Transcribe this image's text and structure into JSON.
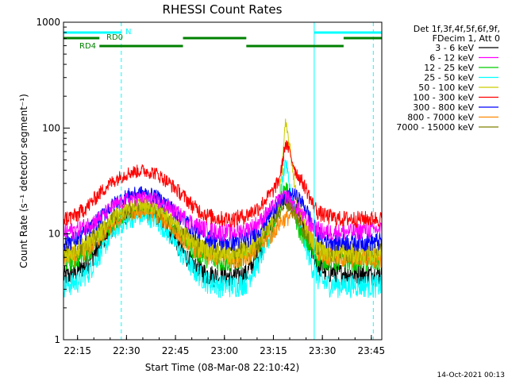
{
  "chart_data": {
    "type": "line",
    "title": "RHESSI Count Rates",
    "xlabel": "Start Time (08-Mar-08 22:10:42)",
    "ylabel": "Count Rate (s⁻¹ detector segment⁻¹)",
    "x_unit": "minutes from 22:10:42",
    "xlim": [
      0,
      97.5
    ],
    "ylim": [
      1,
      1000
    ],
    "yscale": "log",
    "x_ticks": [
      {
        "label": "22:15",
        "value": 4.3
      },
      {
        "label": "22:30",
        "value": 19.3
      },
      {
        "label": "22:45",
        "value": 34.3
      },
      {
        "label": "23:00",
        "value": 49.3
      },
      {
        "label": "23:15",
        "value": 64.3
      },
      {
        "label": "23:30",
        "value": 79.3
      },
      {
        "label": "23:45",
        "value": 94.3
      }
    ],
    "y_ticks": [
      {
        "label": "1",
        "value": 1
      },
      {
        "label": "10",
        "value": 10
      },
      {
        "label": "100",
        "value": 100
      },
      {
        "label": "1000",
        "value": 1000
      }
    ],
    "legend_header": [
      "Det 1f,3f,4f,5f,6f,9f,",
      "FDecim 1, Att 0"
    ],
    "legend_position": "right",
    "footer": "14-Oct-2021 00:13",
    "x": [
      0,
      4,
      8,
      12,
      16,
      20,
      24,
      28,
      32,
      36,
      40,
      44,
      48,
      52,
      56,
      60,
      64,
      66,
      67,
      68,
      69,
      70,
      71,
      72,
      74,
      76,
      78,
      80,
      84,
      88,
      92,
      95
    ],
    "series": [
      {
        "name": "3 - 6 keV",
        "color": "#000000",
        "values": [
          4.0,
          4.3,
          5.5,
          8.5,
          12.5,
          15.5,
          16.5,
          15,
          11,
          7,
          5,
          4.2,
          4.0,
          4.0,
          4.2,
          6.5,
          13,
          19,
          20,
          21,
          20,
          19,
          17,
          15,
          11,
          7,
          5,
          4.5,
          4.3,
          4.2,
          4.2,
          4.2
        ]
      },
      {
        "name": "6 - 12 keV",
        "color": "#ff00ff",
        "values": [
          10.5,
          11,
          12.5,
          15,
          19,
          21.5,
          22,
          21,
          18,
          15,
          12.5,
          11,
          10.5,
          10.5,
          11,
          13,
          18,
          21,
          22,
          23,
          22,
          20,
          18.5,
          17,
          14,
          12,
          11,
          10.5,
          10.5,
          10.5,
          11,
          11
        ]
      },
      {
        "name": "12 - 25 keV",
        "color": "#00cc00",
        "values": [
          5.5,
          5.8,
          7,
          10,
          13.5,
          16.5,
          17.5,
          16.5,
          13,
          9.5,
          7,
          6,
          5.5,
          5.5,
          6,
          8,
          12,
          17,
          22,
          29,
          24,
          18,
          14,
          11,
          9,
          7,
          6,
          5.7,
          5.5,
          5.5,
          5.5,
          5.5
        ]
      },
      {
        "name": "25 - 50 keV",
        "color": "#00ffff",
        "values": [
          3.3,
          3.5,
          4.5,
          7,
          11,
          13.5,
          14.5,
          13.5,
          10,
          6.5,
          4.5,
          3.6,
          3.3,
          3.3,
          3.5,
          5.5,
          10,
          18,
          30,
          50,
          32,
          20,
          15,
          12,
          8,
          5,
          3.8,
          3.4,
          3.3,
          3.3,
          3.3,
          3.3
        ]
      },
      {
        "name": "50 - 100 keV",
        "color": "#cccc00",
        "values": [
          6.5,
          7,
          8.5,
          11,
          15,
          18,
          19,
          18,
          15,
          11,
          8,
          7,
          6.5,
          6.5,
          7,
          9,
          13,
          20,
          40,
          110,
          75,
          45,
          26,
          18,
          12,
          9,
          7.5,
          7,
          6.5,
          6.5,
          6.5,
          6.5
        ]
      },
      {
        "name": "100 - 300 keV",
        "color": "#ff0000",
        "values": [
          14,
          15,
          19,
          26,
          33,
          38,
          40,
          38,
          31,
          24,
          18,
          15,
          14,
          14,
          15,
          18,
          25,
          32,
          45,
          72,
          62,
          50,
          40,
          35,
          28,
          20,
          16,
          15,
          14,
          14,
          14,
          14
        ]
      },
      {
        "name": "300 - 800 keV",
        "color": "#0000ff",
        "values": [
          8.5,
          9,
          11,
          15,
          20,
          23.5,
          24.5,
          23,
          19,
          14.5,
          11,
          9.5,
          8.5,
          8.5,
          9,
          11,
          16,
          20,
          21,
          22,
          23,
          24,
          23,
          22,
          18,
          13,
          10,
          9,
          8.5,
          8.5,
          8.5,
          8.5
        ]
      },
      {
        "name": "800 - 7000 keV",
        "color": "#ff8800",
        "values": [
          6,
          6.3,
          7.5,
          10,
          13,
          15.5,
          16.5,
          15.5,
          12.5,
          9.5,
          7.5,
          6.3,
          6,
          6,
          6.3,
          7.5,
          10,
          12.5,
          13.5,
          14,
          14.5,
          15,
          15,
          14.5,
          12,
          9,
          7,
          6.5,
          6,
          6,
          6,
          6
        ]
      },
      {
        "name": "7000 - 15000 keV",
        "color": "#808000",
        "values": [
          6.8,
          7.2,
          8.5,
          11.5,
          15,
          18,
          19,
          18,
          14.5,
          11,
          8.5,
          7.2,
          6.8,
          6.8,
          7.2,
          9,
          12.5,
          16,
          18,
          20,
          19,
          17,
          15,
          13.5,
          10.5,
          8.5,
          7.5,
          7,
          6.8,
          6.8,
          6.8,
          6.8
        ]
      }
    ],
    "flags": [
      {
        "label": "N",
        "color": "#00ffff",
        "segments": [
          [
            0,
            17.7
          ],
          [
            76.8,
            97.5
          ]
        ]
      },
      {
        "label": "RD0",
        "color": "#008000",
        "segments": [
          [
            0,
            11
          ],
          [
            36.6,
            56
          ],
          [
            85.8,
            97.5
          ]
        ]
      },
      {
        "label": "RD4",
        "color": "#008000",
        "segments": [
          [
            11,
            36.6
          ],
          [
            56,
            85.8
          ]
        ]
      }
    ],
    "markers": [
      {
        "color": "#00ffff",
        "style": "solid",
        "x": 0
      },
      {
        "color": "#00ffff",
        "style": "dashed",
        "x": 17.7
      },
      {
        "color": "#00ffff",
        "style": "solid",
        "x": 76.8
      },
      {
        "color": "#00ffff",
        "style": "dashed",
        "x": 94.9
      }
    ],
    "grid": false
  }
}
